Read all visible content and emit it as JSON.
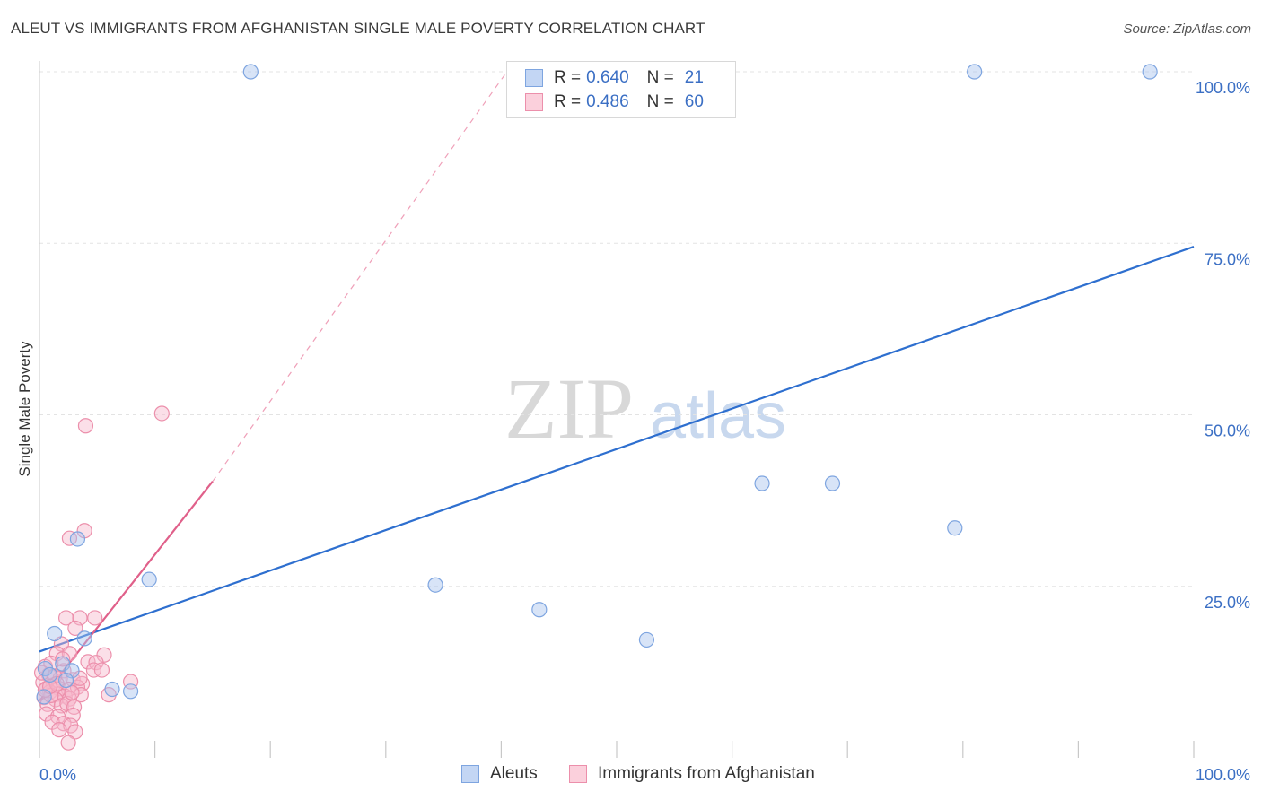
{
  "header": {
    "title": "ALEUT VS IMMIGRANTS FROM AFGHANISTAN SINGLE MALE POVERTY CORRELATION CHART",
    "source": "Source: ZipAtlas.com"
  },
  "watermark": {
    "zip": "ZIP",
    "atlas": "atlas"
  },
  "legend": {
    "rows": [
      {
        "r_label": "R =",
        "r_value": "0.640",
        "n_label": "N =",
        "n_value": "21",
        "color": "#a9c4ee"
      },
      {
        "r_label": "R =",
        "r_value": "0.486",
        "n_label": "N =",
        "n_value": "60",
        "color": "#f6b9cb"
      }
    ]
  },
  "bottom_legend": {
    "items": [
      {
        "label": "Aleuts",
        "color": "#a9c4ee"
      },
      {
        "label": "Immigrants from Afghanistan",
        "color": "#f6b9cb"
      }
    ]
  },
  "chart_data": {
    "type": "scatter",
    "title": "ALEUT VS IMMIGRANTS FROM AFGHANISTAN SINGLE MALE POVERTY CORRELATION CHART",
    "xlabel": "",
    "ylabel": "Single Male Poverty",
    "xlim": [
      0,
      100
    ],
    "ylim": [
      0,
      100
    ],
    "x_tick_labels": [
      {
        "value": 0,
        "label": "0.0%"
      },
      {
        "value": 100,
        "label": "100.0%"
      }
    ],
    "y_tick_labels": [
      {
        "value": 25,
        "label": "25.0%"
      },
      {
        "value": 50,
        "label": "50.0%"
      },
      {
        "value": 75,
        "label": "75.0%"
      },
      {
        "value": 100,
        "label": "100.0%"
      }
    ],
    "grid": true,
    "series": [
      {
        "name": "Aleuts",
        "color": "#a9c4ee",
        "stroke": "#7ea5e0",
        "trend_color": "#2e6fcf",
        "trend": {
          "x0": 0,
          "y0": 15.5,
          "x1": 100,
          "y1": 74.5
        },
        "points": [
          [
            18.3,
            100
          ],
          [
            81.0,
            100
          ],
          [
            96.2,
            100
          ],
          [
            62.6,
            40.0
          ],
          [
            68.7,
            40.0
          ],
          [
            79.3,
            33.5
          ],
          [
            34.3,
            25.2
          ],
          [
            43.3,
            21.6
          ],
          [
            52.6,
            17.2
          ],
          [
            9.5,
            26.0
          ],
          [
            3.3,
            31.9
          ],
          [
            1.3,
            18.1
          ],
          [
            3.9,
            17.4
          ],
          [
            2.0,
            13.7
          ],
          [
            2.8,
            12.7
          ],
          [
            0.5,
            13.0
          ],
          [
            2.3,
            11.3
          ],
          [
            0.9,
            12.1
          ],
          [
            6.3,
            10.0
          ],
          [
            7.9,
            9.7
          ],
          [
            0.4,
            8.9
          ]
        ]
      },
      {
        "name": "Immigrants from Afghanistan",
        "color": "#f6b9cb",
        "stroke": "#ec8fab",
        "trend_color": "#e0608a",
        "trend": {
          "x0": 0,
          "y0": 8.3,
          "x1": 15.0,
          "y1": 40.3
        },
        "trend_dashed": {
          "x0": 15.0,
          "y0": 40.3,
          "x1": 40.5,
          "y1": 100
        },
        "points": [
          [
            10.6,
            50.2
          ],
          [
            4.0,
            48.4
          ],
          [
            3.9,
            33.1
          ],
          [
            2.6,
            32.0
          ],
          [
            2.3,
            20.4
          ],
          [
            3.5,
            20.4
          ],
          [
            4.8,
            20.4
          ],
          [
            3.1,
            18.9
          ],
          [
            1.9,
            16.6
          ],
          [
            1.5,
            15.2
          ],
          [
            2.6,
            15.2
          ],
          [
            5.6,
            15.0
          ],
          [
            0.5,
            13.3
          ],
          [
            1.0,
            13.8
          ],
          [
            4.2,
            14.0
          ],
          [
            4.9,
            13.9
          ],
          [
            2.1,
            12.7
          ],
          [
            4.7,
            12.8
          ],
          [
            5.4,
            12.8
          ],
          [
            0.8,
            12.1
          ],
          [
            1.8,
            11.6
          ],
          [
            2.9,
            11.4
          ],
          [
            0.3,
            11.0
          ],
          [
            1.2,
            10.6
          ],
          [
            3.7,
            10.8
          ],
          [
            7.9,
            11.1
          ],
          [
            0.6,
            10.1
          ],
          [
            1.7,
            10.1
          ],
          [
            2.5,
            10.0
          ],
          [
            3.3,
            10.3
          ],
          [
            0.9,
            9.6
          ],
          [
            1.6,
            9.3
          ],
          [
            2.2,
            9.0
          ],
          [
            3.6,
            9.2
          ],
          [
            6.0,
            9.2
          ],
          [
            0.4,
            8.8
          ],
          [
            1.4,
            8.5
          ],
          [
            2.6,
            8.6
          ],
          [
            0.7,
            7.8
          ],
          [
            1.9,
            7.6
          ],
          [
            2.4,
            7.9
          ],
          [
            3.0,
            7.4
          ],
          [
            0.6,
            6.4
          ],
          [
            1.6,
            6.0
          ],
          [
            2.9,
            6.2
          ],
          [
            1.1,
            5.2
          ],
          [
            2.1,
            5.0
          ],
          [
            2.7,
            4.7
          ],
          [
            1.7,
            4.1
          ],
          [
            3.1,
            3.8
          ],
          [
            2.5,
            2.2
          ],
          [
            1.3,
            11.9
          ],
          [
            0.2,
            12.4
          ],
          [
            2.0,
            14.4
          ],
          [
            3.5,
            11.6
          ],
          [
            1.0,
            9.1
          ],
          [
            0.5,
            9.9
          ],
          [
            2.8,
            9.5
          ],
          [
            1.5,
            10.8
          ],
          [
            0.9,
            10.4
          ]
        ]
      }
    ]
  }
}
